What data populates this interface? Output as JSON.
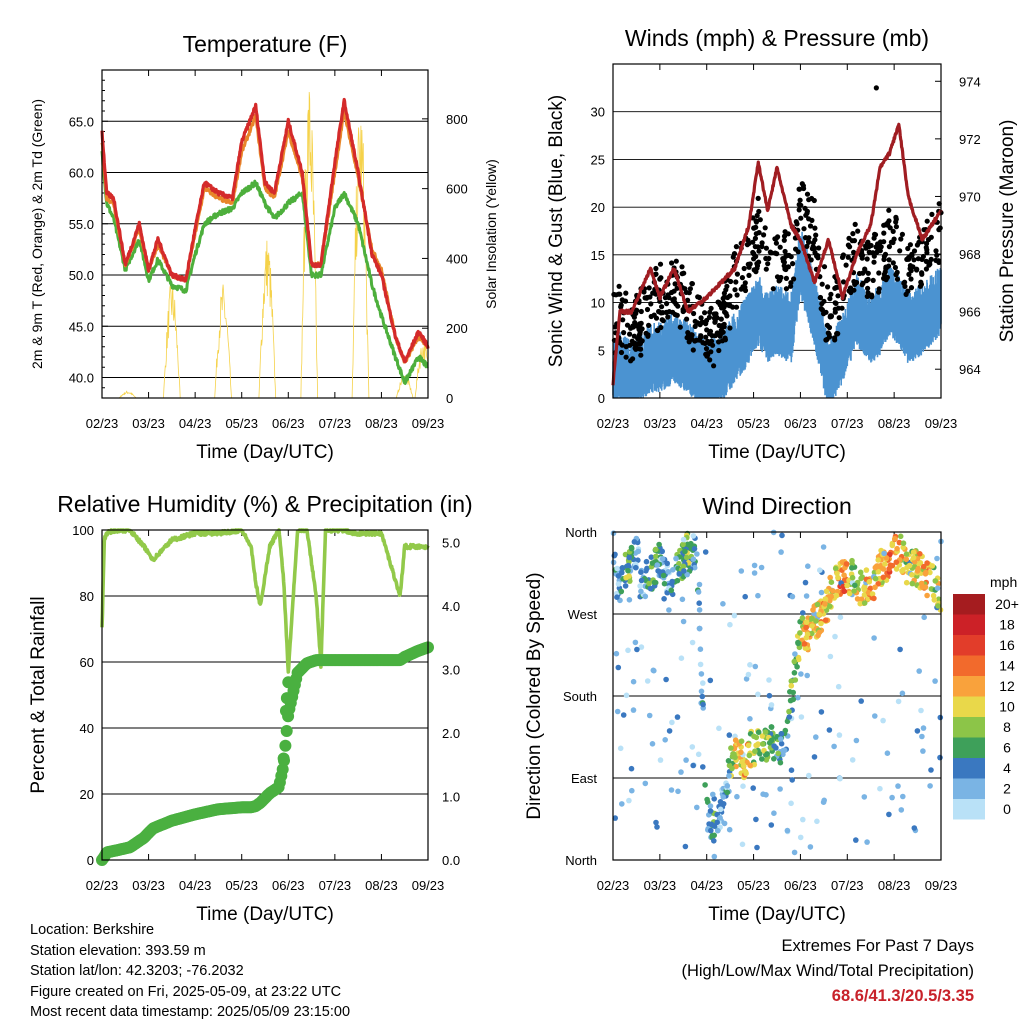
{
  "x_tick_labels": [
    "02/23",
    "03/23",
    "04/23",
    "05/23",
    "06/23",
    "07/23",
    "08/23",
    "09/23"
  ],
  "x_axis_label": "Time (Day/UTC)",
  "colors": {
    "red_temp": "#d42a2a",
    "orange_temp": "#e8862a",
    "green_td": "#4daf3c",
    "yellow_solar": "#f5d24a",
    "blue_wind": "#4b93d1",
    "black_gust": "#000000",
    "maroon_pressure": "#a01d22",
    "rh_line": "#92c94a",
    "precip_dots": "#4ab040",
    "extremes_value": "#c8222a"
  },
  "chart_data": [
    {
      "type": "line",
      "title": "Temperature (F)",
      "xlabel": "Time (Day/UTC)",
      "ylabel": "2m & 9m T (Red, Orange) & 2m Td (Green)",
      "ylabel_right": "Solar Insolation (Yellow)",
      "ylim": [
        38,
        70
      ],
      "ylim_right": [
        0,
        940
      ],
      "y_ticks": [
        "40.0",
        "45.0",
        "50.0",
        "55.0",
        "60.0",
        "65.0"
      ],
      "y_ticks_right": [
        "0",
        "200",
        "400",
        "600",
        "800"
      ],
      "grid": true,
      "x": [
        0,
        0.1,
        0.25,
        0.5,
        0.8,
        1.0,
        1.2,
        1.5,
        1.8,
        2.0,
        2.2,
        2.5,
        2.8,
        3.0,
        3.3,
        3.5,
        3.7,
        4.0,
        4.3,
        4.5,
        4.7,
        5.0,
        5.2,
        5.5,
        5.8,
        6.0,
        6.3,
        6.5,
        6.8,
        7.0
      ],
      "series": [
        {
          "name": "2m T",
          "values": [
            64.0,
            58.0,
            57.5,
            51.0,
            55.0,
            50.5,
            53.5,
            50.0,
            49.5,
            54.5,
            59.0,
            58.0,
            57.5,
            63.0,
            66.5,
            59.0,
            58.0,
            65.0,
            60.0,
            51.0,
            51.0,
            61.0,
            67.0,
            60.0,
            52.0,
            50.0,
            44.0,
            41.5,
            44.5,
            43.0
          ]
        },
        {
          "name": "9m T",
          "values": [
            63.0,
            57.5,
            57.0,
            51.0,
            54.5,
            50.5,
            53.0,
            50.0,
            49.5,
            54.0,
            58.5,
            57.5,
            57.0,
            62.0,
            65.5,
            58.5,
            57.5,
            64.0,
            59.5,
            51.0,
            51.0,
            60.0,
            66.0,
            59.5,
            52.5,
            50.5,
            44.0,
            41.5,
            44.0,
            43.0
          ]
        },
        {
          "name": "2m Td",
          "values": [
            62.0,
            57.0,
            55.5,
            50.5,
            53.5,
            49.5,
            51.5,
            49.0,
            48.5,
            52.0,
            55.0,
            56.0,
            56.5,
            58.0,
            59.0,
            57.0,
            55.5,
            57.0,
            58.0,
            50.0,
            50.0,
            56.5,
            58.0,
            55.0,
            49.0,
            46.0,
            42.0,
            39.5,
            42.0,
            41.0
          ]
        },
        {
          "name": "Solar",
          "values": [
            0,
            0,
            0,
            0,
            0,
            0,
            340,
            0,
            0,
            0,
            360,
            0,
            0,
            0,
            430,
            0,
            0,
            0,
            940,
            0,
            0,
            0,
            840,
            0,
            0,
            0,
            0,
            0,
            180,
            0
          ]
        }
      ]
    },
    {
      "type": "line",
      "title": "Winds (mph) & Pressure (mb)",
      "xlabel": "Time (Day/UTC)",
      "ylabel": "Sonic Wind & Gust (Blue, Black)",
      "ylabel_right": "Station Pressure (Maroon)",
      "ylim": [
        0,
        35
      ],
      "ylim_right": [
        963,
        974.6
      ],
      "y_ticks": [
        "0",
        "5",
        "10",
        "15",
        "20",
        "25",
        "30"
      ],
      "y_ticks_right": [
        "964",
        "966",
        "968",
        "970",
        "972",
        "974"
      ],
      "grid": true,
      "x": [
        0,
        0.15,
        0.4,
        0.8,
        1.0,
        1.3,
        1.6,
        2.0,
        2.3,
        2.6,
        2.9,
        3.1,
        3.3,
        3.5,
        3.8,
        4.0,
        4.3,
        4.6,
        4.9,
        5.2,
        5.5,
        5.7,
        5.9,
        6.1,
        6.3,
        6.6,
        7.0
      ],
      "series": [
        {
          "name": "Station Pressure",
          "values": [
            963.5,
            966.0,
            966.0,
            967.5,
            966.5,
            967.5,
            966.0,
            966.5,
            967.0,
            967.5,
            969.0,
            971.2,
            969.5,
            971.0,
            969.0,
            968.5,
            967.0,
            968.5,
            966.5,
            968.0,
            969.0,
            971.0,
            971.5,
            972.5,
            970.0,
            968.5,
            969.5
          ]
        },
        {
          "name": "Sonic Wind",
          "values": [
            3,
            4,
            3,
            5,
            5,
            6,
            5,
            3,
            4,
            6,
            8,
            10,
            8,
            9,
            8,
            15,
            10,
            3,
            6,
            10,
            8,
            9,
            11,
            10,
            8,
            9,
            11
          ]
        },
        {
          "name": "Gust",
          "values": [
            8,
            9,
            7,
            10,
            11,
            12,
            10,
            6,
            8,
            13,
            15,
            18,
            14,
            16,
            15,
            20,
            18,
            8,
            12,
            16,
            14,
            15,
            17,
            16,
            14,
            15,
            18
          ]
        }
      ]
    },
    {
      "type": "line",
      "title": "Relative Humidity (%) & Precipitation (in)",
      "xlabel": "Time (Day/UTC)",
      "ylabel": "Percent & Total Rainfall",
      "ylim": [
        0,
        100
      ],
      "ylim_right": [
        0,
        5.2
      ],
      "y_ticks": [
        "0",
        "20",
        "40",
        "60",
        "80",
        "100"
      ],
      "y_ticks_right": [
        "0.0",
        "1.0",
        "2.0",
        "3.0",
        "4.0",
        "5.0"
      ],
      "grid": true,
      "x": [
        0,
        0.05,
        0.1,
        0.3,
        0.6,
        0.9,
        1.1,
        1.5,
        2.0,
        2.5,
        3.0,
        3.2,
        3.3,
        3.4,
        3.6,
        3.8,
        3.9,
        4.0,
        4.2,
        4.4,
        4.6,
        4.7,
        4.8,
        5.0,
        5.2,
        5.4,
        6.0,
        6.4,
        6.5,
        6.8,
        7.0
      ],
      "series": [
        {
          "name": "Relative Humidity",
          "values": [
            70,
            97,
            99,
            100,
            100,
            95,
            91,
            97,
            99,
            99,
            100,
            95,
            84,
            77,
            95,
            100,
            85,
            57,
            100,
            100,
            80,
            59,
            100,
            100,
            100,
            99,
            99,
            80,
            95,
            95,
            95
          ]
        },
        {
          "name": "Total Precipitation",
          "values": [
            0.0,
            0.05,
            0.12,
            0.15,
            0.2,
            0.35,
            0.5,
            0.62,
            0.72,
            0.8,
            0.83,
            0.83,
            0.85,
            0.9,
            1.05,
            1.15,
            1.5,
            2.3,
            2.95,
            3.1,
            3.15,
            3.15,
            3.15,
            3.15,
            3.15,
            3.15,
            3.15,
            3.15,
            3.2,
            3.3,
            3.35
          ]
        }
      ]
    },
    {
      "type": "scatter",
      "title": "Wind Direction",
      "xlabel": "Time (Day/UTC)",
      "ylabel": "Direction (Colored By Speed)",
      "y_ticks": [
        "North",
        "East",
        "South",
        "West",
        "North"
      ],
      "ylim": [
        0,
        360
      ],
      "grid": true,
      "legend": {
        "title": "mph",
        "labels": [
          "20+",
          "18",
          "16",
          "14",
          "12",
          "10",
          "8",
          "6",
          "4",
          "2",
          "0"
        ],
        "colors": [
          "#a51c1f",
          "#cc2127",
          "#e23d2a",
          "#f26a2c",
          "#f9a23c",
          "#e9d84a",
          "#8cc548",
          "#3ea05a",
          "#3a78c0",
          "#7ab4e4",
          "#b9e1f7"
        ],
        "placement": "right"
      },
      "x": [
        0.05,
        0.1,
        0.2,
        0.3,
        0.4,
        0.5,
        0.6,
        0.75,
        0.9,
        1.0,
        1.2,
        1.4,
        1.6,
        1.8,
        2.0,
        2.1,
        2.2,
        2.3,
        2.4,
        2.6,
        2.8,
        3.0,
        3.2,
        3.4,
        3.6,
        3.7,
        3.8,
        3.9,
        4.0,
        4.1,
        4.3,
        4.5,
        4.7,
        4.9,
        5.1,
        5.3,
        5.5,
        5.7,
        5.9,
        6.1,
        6.3,
        6.5,
        6.7,
        6.9,
        7.0
      ],
      "values": [
        320,
        300,
        310,
        320,
        330,
        340,
        300,
        310,
        320,
        330,
        300,
        320,
        340,
        320,
        50,
        40,
        30,
        60,
        80,
        120,
        110,
        125,
        120,
        130,
        120,
        140,
        180,
        210,
        250,
        240,
        260,
        270,
        300,
        310,
        310,
        300,
        300,
        320,
        330,
        340,
        320,
        320,
        310,
        300,
        290
      ],
      "speeds": [
        4,
        2,
        6,
        8,
        4,
        2,
        3,
        5,
        6,
        4,
        2,
        5,
        7,
        3,
        3,
        4,
        5,
        2,
        3,
        10,
        12,
        8,
        7,
        6,
        5,
        4,
        8,
        7,
        9,
        12,
        10,
        12,
        9,
        14,
        8,
        11,
        12,
        10,
        14,
        12,
        8,
        10,
        12,
        9,
        13
      ]
    }
  ],
  "info": {
    "location": "Location: Berkshire",
    "elevation": "Station elevation: 393.59 m",
    "latlon": "Station lat/lon: 42.3203; -76.2032",
    "created": "Figure created on Fri, 2025-05-09, at 23:22 UTC",
    "recent": "Most recent data timestamp: 2025/05/09 23:15:00"
  },
  "extremes": {
    "line1": "Extremes For Past 7 Days",
    "line2": "(High/Low/Max Wind/Total Precipitation)",
    "value": "68.6/41.3/20.5/3.35"
  }
}
